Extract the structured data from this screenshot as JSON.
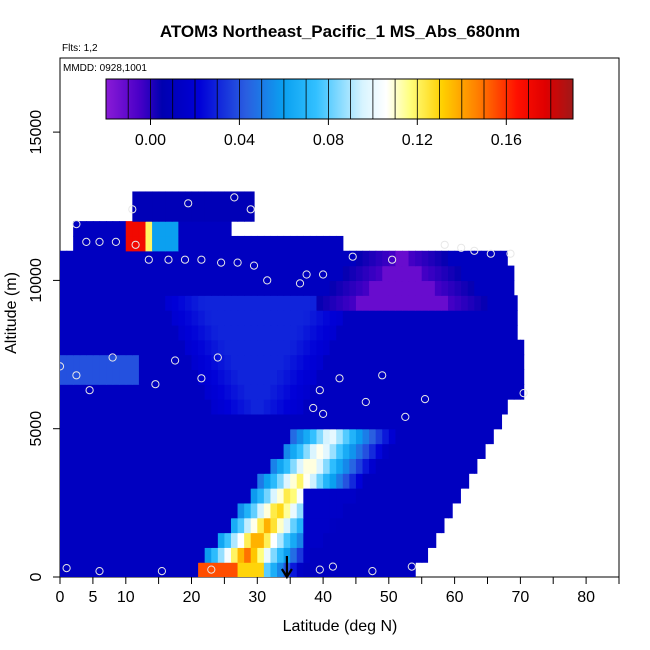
{
  "chart_data": {
    "type": "heatmap",
    "title": "ATOM3 Northeast_Pacific_1 MS_Abs_680nm",
    "annotations": {
      "flights": "Flts: 1,2",
      "dates": "MMDD: 0928,1001"
    },
    "xlabel": "Latitude (deg N)",
    "ylabel": "Altitude (m)",
    "xlim": [
      0,
      85
    ],
    "ylim": [
      0,
      17500
    ],
    "x_ticks": [
      0,
      5,
      10,
      20,
      30,
      40,
      50,
      60,
      70,
      80
    ],
    "y_ticks": [
      0,
      5000,
      10000,
      15000
    ],
    "colorbar": {
      "range": [
        -0.02,
        0.19
      ],
      "ticks": [
        "0.00",
        "0.04",
        "0.08",
        "0.12",
        "0.16"
      ],
      "tick_values": [
        0.0,
        0.04,
        0.08,
        0.12,
        0.16
      ]
    },
    "sample_points": [
      [
        1.0,
        300
      ],
      [
        6.0,
        200
      ],
      [
        15.5,
        200
      ],
      [
        23.0,
        250
      ],
      [
        39.5,
        250
      ],
      [
        41.5,
        350
      ],
      [
        47.5,
        200
      ],
      [
        53.5,
        350
      ],
      [
        0.0,
        7100
      ],
      [
        2.5,
        6800
      ],
      [
        4.5,
        6300
      ],
      [
        8.0,
        7400
      ],
      [
        14.5,
        6500
      ],
      [
        17.5,
        7300
      ],
      [
        21.5,
        6700
      ],
      [
        24.0,
        7400
      ],
      [
        38.5,
        5700
      ],
      [
        40.0,
        5500
      ],
      [
        39.5,
        6300
      ],
      [
        42.5,
        6700
      ],
      [
        46.5,
        5900
      ],
      [
        49.0,
        6800
      ],
      [
        52.5,
        5400
      ],
      [
        55.5,
        6000
      ],
      [
        70.5,
        6200
      ],
      [
        2.5,
        11900
      ],
      [
        4.0,
        11300
      ],
      [
        6.0,
        11300
      ],
      [
        8.5,
        11300
      ],
      [
        11.0,
        12400
      ],
      [
        11.5,
        11200
      ],
      [
        19.5,
        12600
      ],
      [
        26.5,
        12800
      ],
      [
        29.0,
        12400
      ],
      [
        13.5,
        10700
      ],
      [
        16.5,
        10700
      ],
      [
        19.0,
        10700
      ],
      [
        21.5,
        10700
      ],
      [
        24.5,
        10600
      ],
      [
        27.0,
        10600
      ],
      [
        29.5,
        10500
      ],
      [
        31.5,
        10000
      ],
      [
        36.5,
        9900
      ],
      [
        37.5,
        10200
      ],
      [
        40.0,
        10200
      ],
      [
        44.5,
        10800
      ],
      [
        50.5,
        10700
      ],
      [
        58.5,
        11200
      ],
      [
        61.0,
        11100
      ],
      [
        63.0,
        11000
      ],
      [
        65.5,
        10900
      ],
      [
        68.5,
        10900
      ]
    ],
    "marker": {
      "x": 34.5,
      "label": "arrow"
    },
    "regions": [
      {
        "name": "background",
        "approx_value": 0.01
      },
      {
        "name": "low-altitude plume core",
        "approx_value": 0.15
      },
      {
        "name": "upper tropospheric minimum",
        "approx_value": -0.01
      },
      {
        "name": "high-altitude hotspot near 10N",
        "approx_value": 0.16
      }
    ]
  }
}
